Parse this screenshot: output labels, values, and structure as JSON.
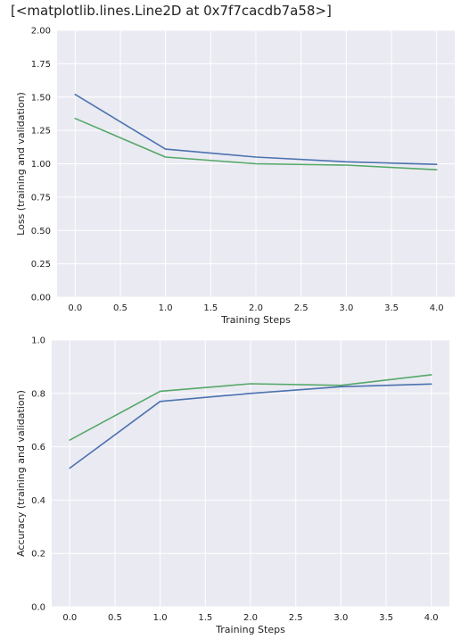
{
  "output_text": "[<matplotlib.lines.Line2D at 0x7f7cacdb7a58>]",
  "colors": {
    "plot_background": "#eaeaf2",
    "grid": "#ffffff",
    "blue": "#4c72b0",
    "green": "#55a868"
  },
  "chart_data": [
    {
      "type": "line",
      "xlabel": "Training Steps",
      "ylabel": "Loss (training and validation)",
      "x": [
        0,
        1,
        2,
        3,
        4
      ],
      "xlim": [
        -0.2,
        4.2
      ],
      "ylim": [
        0,
        2
      ],
      "xticks": [
        "0.0",
        "0.5",
        "1.0",
        "1.5",
        "2.0",
        "2.5",
        "3.0",
        "3.5",
        "4.0"
      ],
      "yticks": [
        "0.00",
        "0.25",
        "0.50",
        "0.75",
        "1.00",
        "1.25",
        "1.50",
        "1.75",
        "2.00"
      ],
      "grid": true,
      "series": [
        {
          "color": "#4c72b0",
          "values": [
            1.52,
            1.11,
            1.05,
            1.015,
            0.995
          ]
        },
        {
          "color": "#55a868",
          "values": [
            1.34,
            1.05,
            1.0,
            0.99,
            0.955
          ]
        }
      ]
    },
    {
      "type": "line",
      "xlabel": "Training Steps",
      "ylabel": "Accuracy (training and validation)",
      "x": [
        0,
        1,
        2,
        3,
        4
      ],
      "xlim": [
        -0.2,
        4.2
      ],
      "ylim": [
        0,
        1
      ],
      "xticks": [
        "0.0",
        "0.5",
        "1.0",
        "1.5",
        "2.0",
        "2.5",
        "3.0",
        "3.5",
        "4.0"
      ],
      "yticks": [
        "0.0",
        "0.2",
        "0.4",
        "0.6",
        "0.8",
        "1.0"
      ],
      "grid": true,
      "series": [
        {
          "color": "#4c72b0",
          "values": [
            0.52,
            0.77,
            0.8,
            0.825,
            0.835
          ]
        },
        {
          "color": "#55a868",
          "values": [
            0.625,
            0.808,
            0.836,
            0.83,
            0.87
          ]
        }
      ]
    }
  ]
}
